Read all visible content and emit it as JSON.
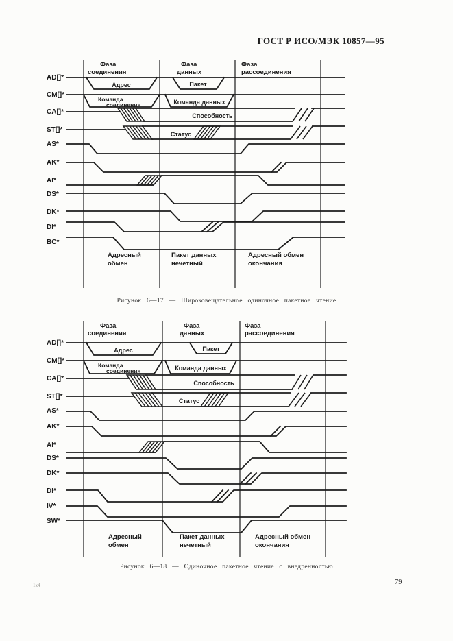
{
  "page": {
    "header": "ГОСТ Р ИСО/МЭК 10857—95",
    "footer_left": "1x4",
    "page_number": "79"
  },
  "figure1": {
    "caption": "Рисунок 6—17 — Широковещательное одиночное пакетное чтение",
    "phases": [
      [
        "Фаза",
        "соединения"
      ],
      [
        "Фаза",
        "данных"
      ],
      [
        "Фаза",
        "рассоединения"
      ]
    ],
    "signals": [
      "AD[]*",
      "CM[]*",
      "CA[]*",
      "ST[]*",
      "AS*",
      "AK*",
      "AI*",
      "DS*",
      "DK*",
      "DI*",
      "BC*"
    ],
    "bus_labels": {
      "address": "Адрес",
      "packet": "Пакет",
      "cmd_conn": [
        "Команда",
        "соединения"
      ],
      "cmd_data": "Команда данных",
      "capability": "Способность",
      "status": "Статус"
    },
    "bottom_labels": [
      [
        "Адресный",
        "обмен"
      ],
      [
        "Пакет данных",
        "нечетный"
      ],
      [
        "Адресный обмен",
        "окончания"
      ]
    ]
  },
  "figure2": {
    "caption": "Рисунок 6—18 — Одиночное пакетное чтение с внедренностью",
    "phases": [
      [
        "Фаза",
        "соединения"
      ],
      [
        "Фаза",
        "данных"
      ],
      [
        "Фаза",
        "рассоединения"
      ]
    ],
    "signals": [
      "AD[]*",
      "CM[]*",
      "CA[]*",
      "ST[]*",
      "AS*",
      "AK*",
      "AI*",
      "DS*",
      "DK*",
      "DI*",
      "IV*",
      "SW*"
    ],
    "bus_labels": {
      "address": "Адрес",
      "packet": "Пакет",
      "cmd_conn": [
        "Команда",
        "соединения"
      ],
      "cmd_data": "Команда данных",
      "capability": "Способность",
      "status": "Статус"
    },
    "bottom_labels": [
      [
        "Адресный",
        "обмен"
      ],
      [
        "Пакет данных",
        "нечетный"
      ],
      [
        "Адресный обмен",
        "окончания"
      ]
    ]
  }
}
